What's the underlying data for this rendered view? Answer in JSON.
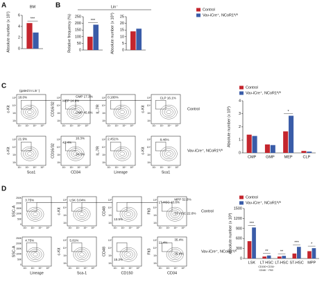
{
  "figure": {
    "panel_labels": [
      "A",
      "B",
      "C",
      "D"
    ],
    "lin_label": "Lin⁻"
  },
  "chart_data": [
    {
      "type": "bar",
      "title": "BM",
      "ylabel": "Absolute number (x 10⁷)",
      "categories": [
        null
      ],
      "series": [
        {
          "color": "#c4262e",
          "values": [
            4.6
          ]
        },
        {
          "color": "#3a5ca8",
          "values": [
            2.9
          ]
        }
      ],
      "ylim": [
        0,
        6
      ],
      "yticks": [
        0,
        2,
        4,
        6
      ],
      "significance": [
        "***"
      ],
      "legend": false
    },
    {
      "type": "bar",
      "ylabel": "Relative frequency (%)",
      "categories": [
        null
      ],
      "series": [
        {
          "name": "Control",
          "color": "#c4262e",
          "values": [
            100
          ]
        },
        {
          "name": "Vav-iCre⁺, NCoR1ᶠˡ/ᶠˡ",
          "color": "#3a5ca8",
          "values": [
            190
          ]
        }
      ],
      "ylim": [
        0,
        250
      ],
      "yticks": [
        0,
        50,
        100,
        150,
        200,
        250
      ],
      "significance": [
        "***"
      ],
      "legend": true
    },
    {
      "type": "bar",
      "ylabel": "Absolute number (x 10⁵)",
      "categories": [
        null
      ],
      "series": [
        {
          "color": "#c4262e",
          "values": [
            14
          ]
        },
        {
          "color": "#3a5ca8",
          "values": [
            16
          ]
        }
      ],
      "ylim": [
        0,
        25
      ],
      "yticks": [
        0,
        5,
        10,
        15,
        20,
        25
      ],
      "significance": [
        null
      ],
      "legend": false
    },
    {
      "type": "bar",
      "ylabel": "Absolute number (x 10³)",
      "categories": [
        "CMP",
        "GMP",
        "MEP",
        "CLP"
      ],
      "series": [
        {
          "name": "Control",
          "color": "#c4262e",
          "values": [
            1.4,
            0.65,
            1.65,
            0.15
          ]
        },
        {
          "name": "Vav-iCre⁺, NCoR1ᶠˡ/ᶠˡ",
          "color": "#3a5ca8",
          "values": [
            1.3,
            0.6,
            2.85,
            0.1
          ]
        }
      ],
      "ylim": [
        0,
        4
      ],
      "yticks": [
        0,
        1,
        2,
        3,
        4
      ],
      "significance": [
        null,
        null,
        "*",
        null
      ],
      "legend": true
    },
    {
      "type": "bar",
      "ylabel": "Absolute number (x 10³)",
      "categories": [
        "LSK",
        "LT HSC",
        "LT-HSC",
        "ST-HSC",
        "MPP"
      ],
      "category_note": [
        "CD150⁺CD34⁻",
        "CD48⁻⁻ Flt3⁻"
      ],
      "series": [
        {
          "name": "Control",
          "color": "#c4262e",
          "values": [
            520,
            60,
            60,
            150,
            220
          ]
        },
        {
          "name": "Vav-iCre⁺, NCoR1ᶠˡ/ᶠˡ",
          "color": "#3a5ca8",
          "values": [
            930,
            90,
            80,
            350,
            310
          ]
        }
      ],
      "ylim": [
        0,
        1500
      ],
      "yticks": [
        0,
        300,
        600,
        900,
        1200,
        1500
      ],
      "significance": [
        "***",
        "**",
        "**",
        "***",
        "*"
      ],
      "legend": true
    }
  ],
  "flow": {
    "gate_note": "(gated in Lin⁻)",
    "tick_labels": [
      "10²",
      "10³",
      "10⁴",
      "10⁵"
    ],
    "ssc_ticks": [
      "250K",
      "200K",
      "150K",
      "100K",
      "50K",
      "0"
    ],
    "panels": [
      {
        "row_labels": [
          "Control",
          "Vav-iCre⁺, NCoR1ᶠˡ/ᶠˡ"
        ],
        "plots": [
          {
            "xlabel": "Sca1",
            "ylabel": "c-Kit",
            "gates": [
              [
                "18.0%"
              ],
              [
                "21.9%"
              ]
            ]
          },
          {
            "xlabel": "CD34",
            "ylabel": "CD16/32",
            "gates": [
              [
                "MEP 14.9%",
                "GMP 17.3%",
                "CMP 45.6%"
              ],
              [
                "42.4%",
                "16.3%",
                "34.3%"
              ]
            ]
          },
          {
            "xlabel": "Lineage",
            "ylabel": "IL-7R",
            "gates": [
              [
                "0.180%"
              ],
              [
                "2.451%"
              ]
            ]
          },
          {
            "xlabel": "Sca1",
            "ylabel": "c-Kit",
            "gates": [
              [
                "CLP 16.1%"
              ],
              [
                "8.46%"
              ]
            ]
          }
        ]
      },
      {
        "row_labels": [
          "Control",
          "Vav-iCre⁺, NCoR1ᶠˡ/ᶠˡ"
        ],
        "plots": [
          {
            "xlabel": "Lineage",
            "ylabel": "SSC-A",
            "gates": [
              [
                "3.75%"
              ],
              [
                "4.75%"
              ]
            ]
          },
          {
            "xlabel": "Sca-1",
            "ylabel": "c-Kit",
            "gates": [
              [
                "LSK 3.04%"
              ],
              [
                "5.81%"
              ]
            ]
          },
          {
            "xlabel": "CD150",
            "ylabel": "CD48",
            "gates": [
              [
                "13.5%"
              ],
              [
                "15.2%"
              ]
            ]
          },
          {
            "xlabel": "CD34",
            "ylabel": "Flt3",
            "gates": [
              [
                "LT-HSC 10.8%",
                "MPP 52.6%",
                "ST-HSC 22.6%"
              ],
              [
                "11.4%",
                "35.4%",
                "25.4%"
              ]
            ]
          }
        ]
      }
    ]
  }
}
